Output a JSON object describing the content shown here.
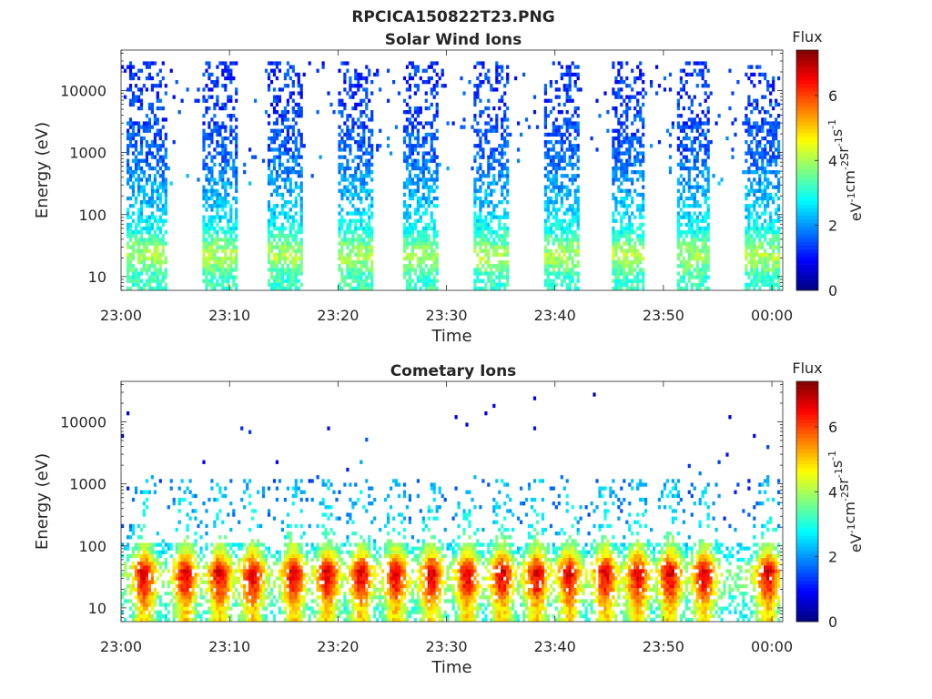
{
  "figure": {
    "title": "RPCICA150822T23.PNG"
  },
  "chart_data": [
    {
      "type": "heatmap",
      "title": "Solar Wind Ions",
      "xlabel": "Time",
      "ylabel": "Energy (eV)",
      "x_ticks": [
        "23:00",
        "23:10",
        "23:20",
        "23:30",
        "23:40",
        "23:50",
        "00:00"
      ],
      "y_ticks": [
        "10",
        "100",
        "1000",
        "10000"
      ],
      "y_scale": "log",
      "ylim": [
        6,
        45000
      ],
      "xlim_minutes": [
        0,
        61
      ],
      "grid": false,
      "colorbar": {
        "label": "Flux",
        "units": "eV-1 cm-2 sr-1 s-1",
        "ticks": [
          "0",
          "2",
          "4",
          "6"
        ],
        "range": [
          0,
          7.4
        ],
        "colormap": "jet"
      },
      "bursts": [
        {
          "start_min": 0.5,
          "end_min": 4.2
        },
        {
          "start_min": 7.5,
          "end_min": 10.5
        },
        {
          "start_min": 13.5,
          "end_min": 16.5
        },
        {
          "start_min": 19.8,
          "end_min": 23.0
        },
        {
          "start_min": 26.0,
          "end_min": 29.2
        },
        {
          "start_min": 32.3,
          "end_min": 35.6
        },
        {
          "start_min": 39.0,
          "end_min": 42.0
        },
        {
          "start_min": 45.2,
          "end_min": 48.2
        },
        {
          "start_min": 51.2,
          "end_min": 54.2
        },
        {
          "start_min": 57.5,
          "end_min": 60.5
        }
      ],
      "energy_profile": [
        {
          "energy_ev": 10,
          "flux": 3.2
        },
        {
          "energy_ev": 20,
          "flux": 4.0
        },
        {
          "energy_ev": 30,
          "flux": 3.8
        },
        {
          "energy_ev": 50,
          "flux": 3.0
        },
        {
          "energy_ev": 100,
          "flux": 2.5
        },
        {
          "energy_ev": 1000,
          "flux": 1.6
        },
        {
          "energy_ev": 10000,
          "flux": 1.3
        }
      ]
    },
    {
      "type": "heatmap",
      "title": "Cometary Ions",
      "xlabel": "Time",
      "ylabel": "Energy (eV)",
      "x_ticks": [
        "23:00",
        "23:10",
        "23:20",
        "23:30",
        "23:40",
        "23:50",
        "00:00"
      ],
      "y_ticks": [
        "10",
        "100",
        "1000",
        "10000"
      ],
      "y_scale": "log",
      "ylim": [
        6,
        45000
      ],
      "xlim_minutes": [
        0,
        61
      ],
      "grid": false,
      "colorbar": {
        "label": "Flux",
        "units": "eV-1 cm-2 sr-1 s-1",
        "ticks": [
          "0",
          "2",
          "4",
          "6"
        ],
        "range": [
          0,
          7.4
        ],
        "colormap": "jet"
      },
      "peak_times_min": [
        2.0,
        5.8,
        9.0,
        12.0,
        15.8,
        18.9,
        22.0,
        25.2,
        28.5,
        31.8,
        35.0,
        38.2,
        41.2,
        44.5,
        47.5,
        50.5,
        53.6,
        59.5
      ],
      "energy_profile": [
        {
          "energy_ev": 10,
          "flux": 5.0
        },
        {
          "energy_ev": 20,
          "flux": 6.2
        },
        {
          "energy_ev": 40,
          "flux": 6.8
        },
        {
          "energy_ev": 80,
          "flux": 4.5
        },
        {
          "energy_ev": 200,
          "flux": 3.0
        },
        {
          "energy_ev": 1000,
          "flux": 2.4
        },
        {
          "energy_ev": 10000,
          "flux": 1.0
        }
      ]
    }
  ]
}
